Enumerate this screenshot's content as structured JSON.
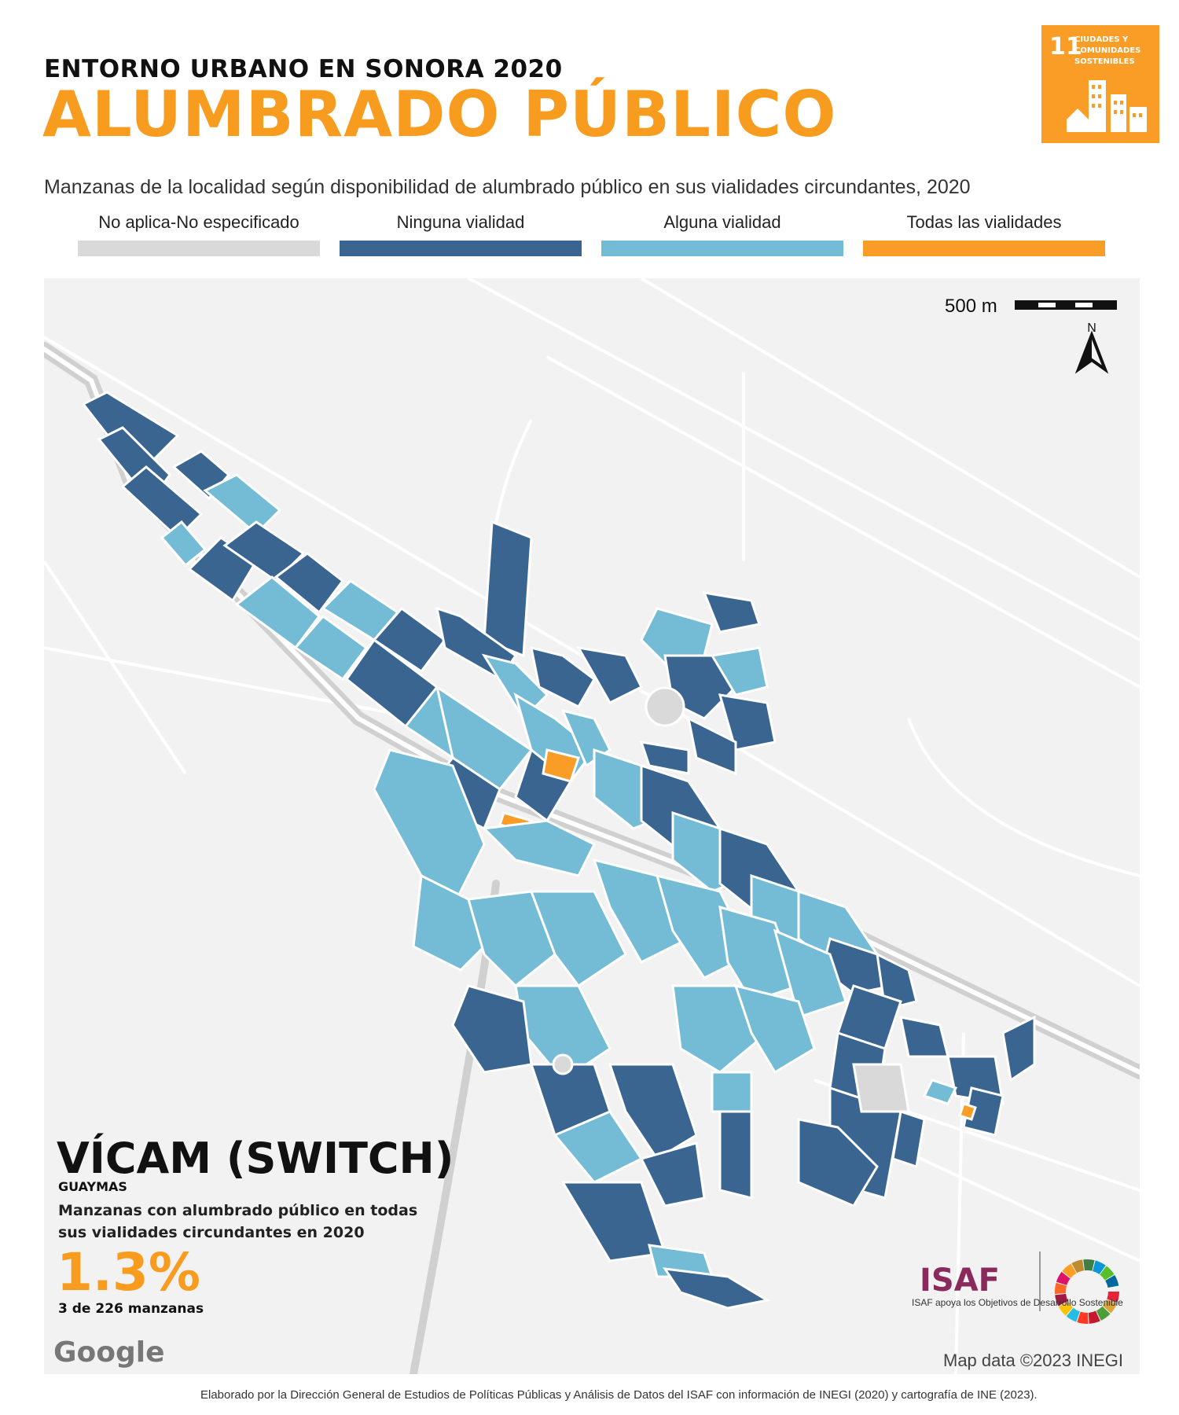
{
  "header": {
    "supertitle": "ENTORNO URBANO EN SONORA 2020",
    "title": "ALUMBRADO PÚBLICO",
    "subtitle": "Manzanas de la localidad según disponibilidad de alumbrado público en sus vialidades circundantes, 2020"
  },
  "sdg_badge": {
    "number": "11",
    "text": "CIUDADES Y COMUNIDADES SOSTENIBLES",
    "color": "#f99d26"
  },
  "legend": [
    {
      "label": "No aplica-No especificado",
      "color": "#d9d9d9"
    },
    {
      "label": "Ninguna vialidad",
      "color": "#3a6591"
    },
    {
      "label": "Alguna vialidad",
      "color": "#74bbd6"
    },
    {
      "label": "Todas las vialidades",
      "color": "#f99d26"
    }
  ],
  "map": {
    "scale_label": "500 m",
    "north_label": "N",
    "attribution": "Map data ©2023 INEGI",
    "google": "Google"
  },
  "locality": {
    "name": "VÍCAM (SWITCH)",
    "municipality": "GUAYMAS",
    "stat_description": "Manzanas con alumbrado público en todas sus vialidades circundantes en 2020",
    "stat_value": "1.3%",
    "stat_count": "3 de 226 manzanas"
  },
  "isaf": {
    "name": "ISAF",
    "caption": "ISAF apoya los Objetivos de Desarrollo Sostenible"
  },
  "footer": "Elaborado por la Dirección General de Estudios de Políticas Públicas y Análisis de Datos del ISAF con información de INEGI (2020) y cartografía de INE (2023)."
}
